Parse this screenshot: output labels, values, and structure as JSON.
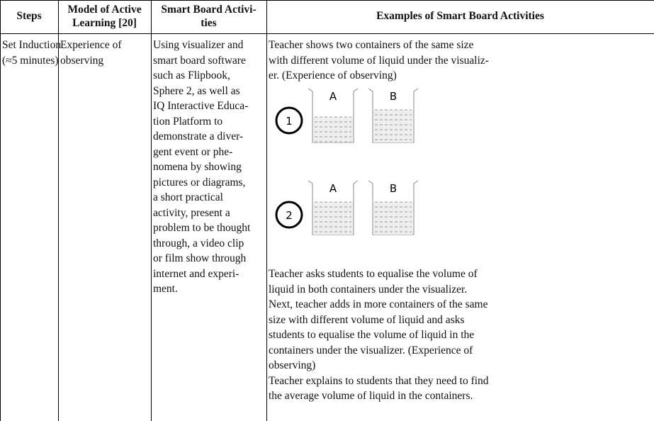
{
  "table": {
    "header": [
      [
        "Steps"
      ],
      [
        "Model of Active",
        "Learning [20]"
      ],
      [
        "Smart Board Activi-",
        "ties"
      ],
      [
        "Examples of Smart Board Activities"
      ]
    ],
    "rows": [
      [
        [
          "Set Induction",
          "(≈5 minutes)"
        ],
        [
          "Experience of",
          "observing"
        ],
        [
          "Using visualizer and",
          "smart board software",
          "such as Flipbook,",
          "Sphere 2, as well as",
          "IQ Interactive Educa-",
          "tion Platform to",
          "demonstrate a diver-",
          "gent event or phe-",
          "nomena by showing",
          "pictures or diagrams,",
          "a short practical",
          "activity, present a",
          "problem to be thought",
          "through, a video clip",
          "or film show through",
          "internet and experi-",
          "ment."
        ],
        {
          "intro": [
            "Teacher shows two containers of the same size",
            "with different volume of liquid under the visualiz-",
            "er. (Experience of observing)"
          ],
          "figures": [
            {
              "number": "1",
              "labels": [
                "A",
                "B"
              ]
            },
            {
              "number": "2",
              "labels": [
                "A",
                "B"
              ]
            }
          ],
          "text": [
            "Teacher asks students to equalise the volume of",
            "liquid in both containers under the visualizer.",
            "Next, teacher adds in more containers of the same",
            "size with different volume of liquid and asks",
            "students to equalise the volume of liquid in the",
            "containers under the visualizer. (Experience of",
            "observing)",
            "Teacher explains to students that they need to find",
            "the average volume of liquid in the containers."
          ]
        }
      ]
    ]
  }
}
